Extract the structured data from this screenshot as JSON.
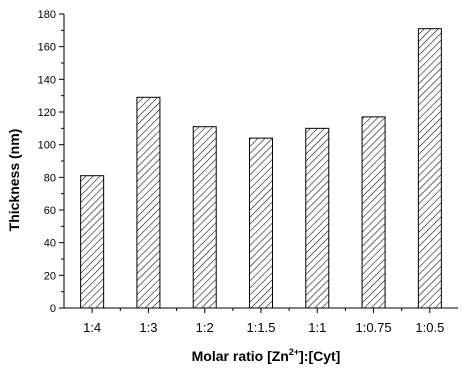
{
  "chart_data": {
    "type": "bar",
    "categories": [
      "1:4",
      "1:3",
      "1:2",
      "1:1.5",
      "1:1",
      "1:0.75",
      "1:0.5"
    ],
    "values": [
      81,
      129,
      111,
      104,
      110,
      117,
      171
    ],
    "xlabel": {
      "before": "Molar ratio [Zn",
      "sup": "2+",
      "after": "]:[Cyt]"
    },
    "ylabel": "Thickness (nm)",
    "ylim": [
      0,
      180
    ],
    "yticks": [
      0,
      20,
      40,
      60,
      80,
      100,
      120,
      140,
      160,
      180
    ],
    "yminor_step": 10,
    "bar_fill": "diagonal-hatch",
    "bar_stroke": "#000000",
    "grid": false,
    "legend": "none"
  }
}
